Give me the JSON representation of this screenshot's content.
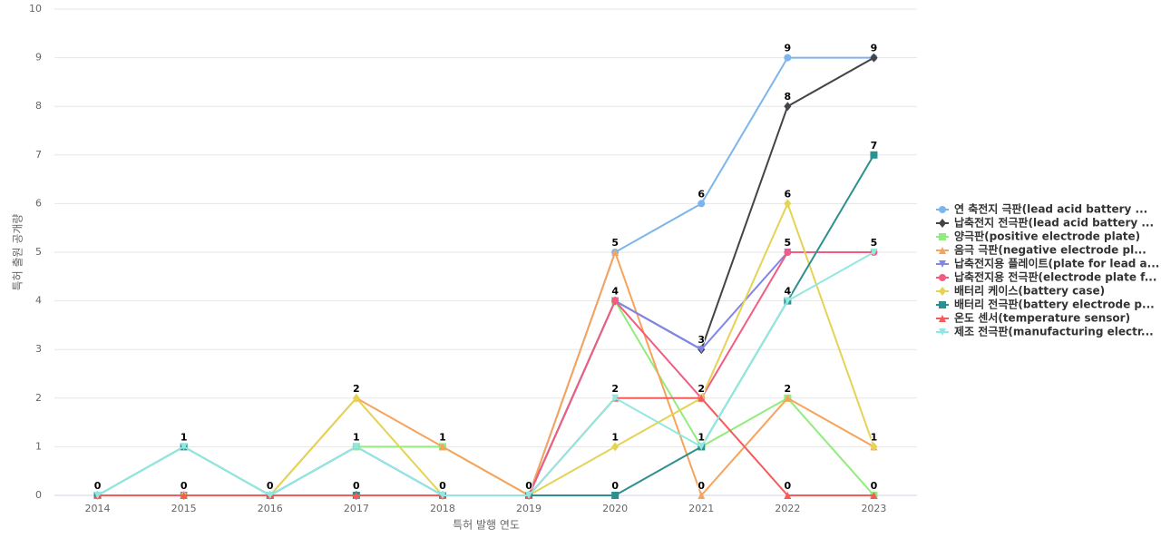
{
  "chart_data": {
    "type": "line",
    "x_label": "특허 발행 연도",
    "y_label": "특허 출원 공개량",
    "categories": [
      "2014",
      "2015",
      "2016",
      "2017",
      "2018",
      "2019",
      "2020",
      "2021",
      "2022",
      "2023"
    ],
    "ylim": [
      0,
      10
    ],
    "yticks": [
      0,
      1,
      2,
      3,
      4,
      5,
      6,
      7,
      8,
      9,
      10
    ],
    "grid": true,
    "legend": "right",
    "series": [
      {
        "name": "연 축전지 극판(lead acid battery ...",
        "color": "#7cb5ec",
        "symbol": "circle",
        "values": [
          0,
          0,
          0,
          1,
          0,
          0,
          5,
          6,
          9,
          9
        ]
      },
      {
        "name": "납축전지 전극판(lead acid battery ...",
        "color": "#434348",
        "symbol": "diamond",
        "values": [
          0,
          0,
          0,
          0,
          0,
          0,
          4,
          3,
          8,
          9
        ]
      },
      {
        "name": "양극판(positive electrode plate)",
        "color": "#90ed7d",
        "symbol": "square",
        "values": [
          0,
          0,
          0,
          1,
          1,
          0,
          4,
          1,
          2,
          0
        ]
      },
      {
        "name": "음극 극판(negative electrode pl...",
        "color": "#f7a35c",
        "symbol": "triangle",
        "values": [
          0,
          0,
          0,
          2,
          1,
          0,
          5,
          0,
          2,
          1
        ]
      },
      {
        "name": "납축전지용 플레이트(plate for lead a...",
        "color": "#8085e9",
        "symbol": "triangle-down",
        "values": [
          0,
          0,
          0,
          1,
          0,
          0,
          4,
          3,
          5,
          5
        ]
      },
      {
        "name": "납축전지용 전극판(electrode plate f...",
        "color": "#f15c80",
        "symbol": "circle",
        "values": [
          0,
          0,
          0,
          0,
          0,
          0,
          4,
          2,
          5,
          5
        ]
      },
      {
        "name": "배터리 케이스(battery case)",
        "color": "#e4d354",
        "symbol": "diamond",
        "values": [
          0,
          0,
          0,
          2,
          0,
          0,
          1,
          2,
          6,
          1
        ]
      },
      {
        "name": "배터리 전극판(battery electrode p...",
        "color": "#2b908f",
        "symbol": "square",
        "values": [
          0,
          1,
          0,
          0,
          0,
          0,
          0,
          1,
          4,
          7
        ]
      },
      {
        "name": "온도 센서(temperature sensor)",
        "color": "#f45b5b",
        "symbol": "triangle",
        "values": [
          0,
          0,
          0,
          0,
          0,
          0,
          2,
          2,
          0,
          0
        ]
      },
      {
        "name": "제조 전극판(manufacturing electr...",
        "color": "#91e8e1",
        "symbol": "triangle-down",
        "values": [
          0,
          1,
          0,
          1,
          0,
          0,
          2,
          1,
          4,
          5
        ]
      }
    ]
  }
}
